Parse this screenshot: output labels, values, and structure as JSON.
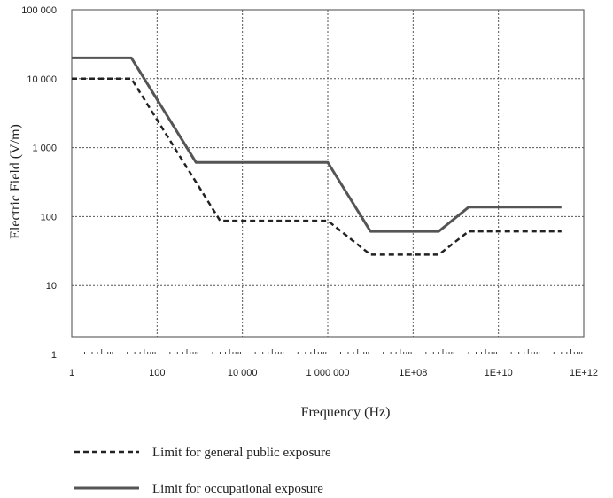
{
  "chart_data": {
    "type": "line",
    "xlabel": "Frequency (Hz)",
    "ylabel": "Electric Field (V/m)",
    "xscale": "log",
    "yscale": "log",
    "xlim": [
      1,
      1000000000000.0
    ],
    "ylim": [
      1,
      100000
    ],
    "x_ticks": [
      {
        "value": 1,
        "label": "1"
      },
      {
        "value": 100,
        "label": "100"
      },
      {
        "value": 10000,
        "label": "10 000"
      },
      {
        "value": 1000000,
        "label": "1 000 000"
      },
      {
        "value": 100000000,
        "label": "1E+08"
      },
      {
        "value": 10000000000,
        "label": "1E+10"
      },
      {
        "value": 1000000000000,
        "label": "1E+12"
      }
    ],
    "y_ticks": [
      {
        "value": 1,
        "label": "1"
      },
      {
        "value": 10,
        "label": "10"
      },
      {
        "value": 100,
        "label": "100"
      },
      {
        "value": 1000,
        "label": "1 000"
      },
      {
        "value": 10000,
        "label": "10 000"
      },
      {
        "value": 100000,
        "label": "100 000"
      }
    ],
    "grid": true,
    "legend_position": "bottom",
    "series": [
      {
        "name": "Limit for general public exposure",
        "style": "dashed",
        "color": "#222222",
        "x": [
          1,
          25,
          3000,
          1000000,
          10000000,
          400000000,
          2000000000,
          300000000000
        ],
        "y": [
          10000,
          10000,
          87,
          87,
          28,
          28,
          61,
          61
        ]
      },
      {
        "name": "Limit for occupational exposure",
        "style": "solid",
        "color": "#555555",
        "x": [
          1,
          25,
          820,
          1000000,
          10000000,
          400000000,
          2000000000,
          300000000000
        ],
        "y": [
          20000,
          20000,
          610,
          610,
          61,
          61,
          137,
          137
        ]
      }
    ]
  }
}
